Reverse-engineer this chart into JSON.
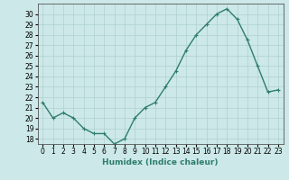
{
  "x": [
    0,
    1,
    2,
    3,
    4,
    5,
    6,
    7,
    8,
    9,
    10,
    11,
    12,
    13,
    14,
    15,
    16,
    17,
    18,
    19,
    20,
    21,
    22,
    23
  ],
  "y": [
    21.5,
    20.0,
    20.5,
    20.0,
    19.0,
    18.5,
    18.5,
    17.5,
    18.0,
    20.0,
    21.0,
    21.5,
    23.0,
    24.5,
    26.5,
    28.0,
    29.0,
    30.0,
    30.5,
    29.5,
    27.5,
    25.0,
    22.5,
    22.7
  ],
  "line_color": "#2e7d6e",
  "marker": "+",
  "bg_color": "#cce8e8",
  "grid_color": "#b0d0d0",
  "xlabel": "Humidex (Indice chaleur)",
  "ylim": [
    17.5,
    31.0
  ],
  "xlim": [
    -0.5,
    23.5
  ],
  "yticks": [
    18,
    19,
    20,
    21,
    22,
    23,
    24,
    25,
    26,
    27,
    28,
    29,
    30
  ],
  "xticks": [
    0,
    1,
    2,
    3,
    4,
    5,
    6,
    7,
    8,
    9,
    10,
    11,
    12,
    13,
    14,
    15,
    16,
    17,
    18,
    19,
    20,
    21,
    22,
    23
  ],
  "tick_fontsize": 5.5,
  "xlabel_fontsize": 6.5,
  "line_width": 1.0,
  "markersize": 3.5
}
